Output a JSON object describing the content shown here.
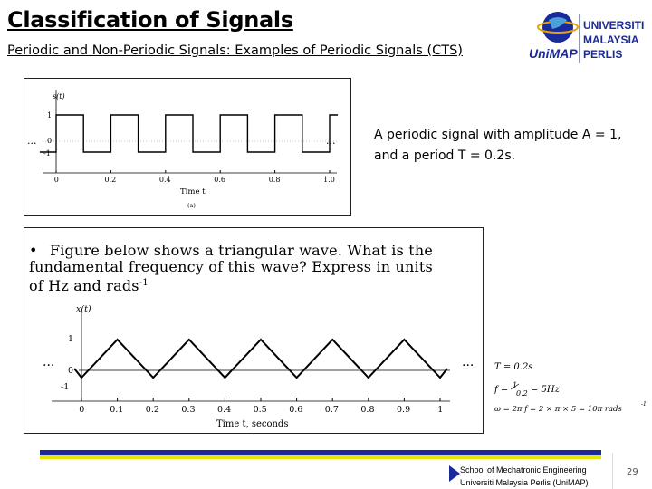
{
  "slide": {
    "title": "Classification of Signals",
    "subtitle": "Periodic and Non-Periodic Signals: Examples of Periodic Signals (CTS)",
    "caption_line1": "A periodic signal with amplitude A = 1,",
    "caption_line2": "and a period T = 0.2s.",
    "bullet_marker": "•",
    "bullet_text": "Figure below shows a triangular wave. What is the fundamental frequency of this wave? Express in units of Hz and rads",
    "bullet_sup": "-1",
    "page_number": "29"
  },
  "logo": {
    "line1": "UNIVERSITI",
    "line2": "MALAYSIA",
    "line3": "PERLIS",
    "brand": "UniMAP"
  },
  "solution": {
    "line1": "T = 0.2s",
    "line2a": "f = ",
    "line2b": "1",
    "line2c": "0.2",
    "line2d": " = 5Hz",
    "line3": "ω = 2π f = 2 × π × 5 = 10π rads",
    "line3_sup": "-1"
  },
  "footer": {
    "line1": "School of Mechatronic Engineering",
    "line2": "Universiti Malaysia Perlis (UniMAP)"
  },
  "colors": {
    "footer_blue": "#1a2a9a",
    "footer_yellow": "#e6e600",
    "logo_blue": "#1a2a9a",
    "logo_gold": "#e3a400"
  },
  "square_wave_plot": {
    "y_label": "s(t)",
    "x_label": "Time t",
    "sub_label": "(a)",
    "x_ticks": [
      "0",
      "0.2",
      "0.4",
      "0.6",
      "0.8",
      "1.0"
    ],
    "y_ticks": [
      "1",
      "0",
      "-1"
    ],
    "ellipsis": "...",
    "amplitude": 1,
    "period": 0.2,
    "x_range": [
      0,
      1.0
    ]
  },
  "triangle_wave_plot": {
    "y_label": "x(t)",
    "x_label": "Time t, seconds",
    "x_ticks": [
      "0",
      "0.1",
      "0.2",
      "0.3",
      "0.4",
      "0.5",
      "0.6",
      "0.7",
      "0.8",
      "0.9",
      "1"
    ],
    "y_ticks": [
      "1",
      "0",
      "-1"
    ],
    "ellipsis": "...",
    "amplitude": 1,
    "period": 0.2,
    "x_range": [
      0,
      1
    ]
  }
}
